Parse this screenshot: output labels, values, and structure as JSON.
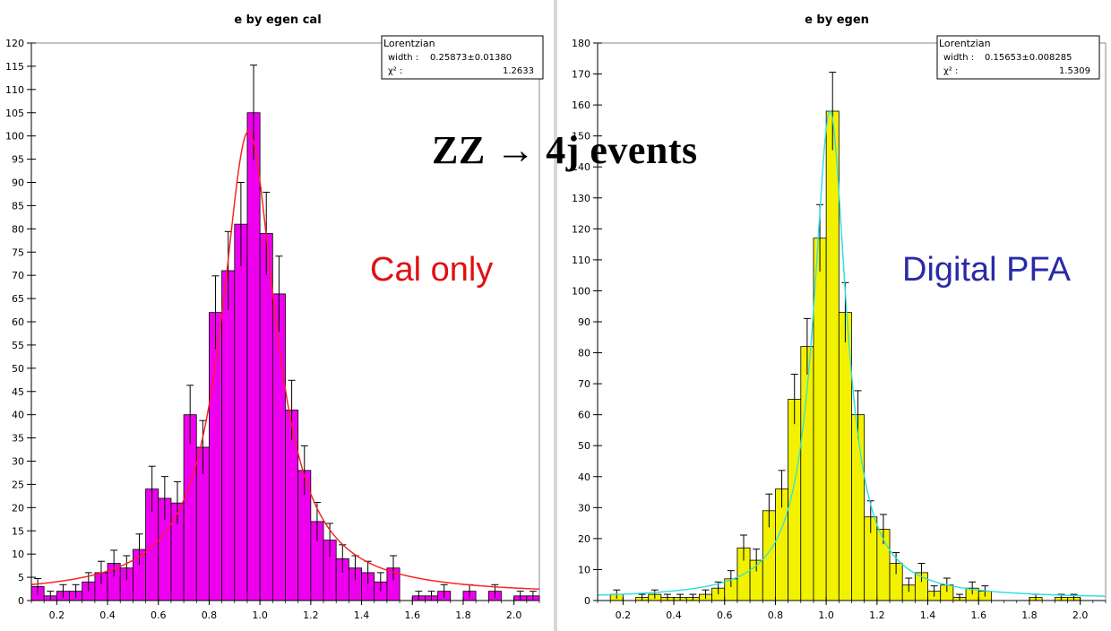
{
  "overlay": {
    "title": "ZZ → 4j events",
    "label_left": "Cal only",
    "label_right": "Digital PFA"
  },
  "colors": {
    "left_fill": "#ee00ee",
    "left_fit": "#ff2020",
    "right_fill": "#f2f200",
    "right_fit": "#30e0e0",
    "label_left": "#e01010",
    "label_right": "#2a2aa8"
  },
  "chart_data": [
    {
      "type": "bar",
      "title": "e by egen cal",
      "xlabel": "",
      "ylabel": "",
      "xlim": [
        0.1,
        2.1
      ],
      "ylim": [
        0,
        120
      ],
      "bin_width": 0.05,
      "yticks": [
        0,
        5,
        10,
        15,
        20,
        25,
        30,
        35,
        40,
        45,
        50,
        55,
        60,
        65,
        70,
        75,
        80,
        85,
        90,
        95,
        100,
        105,
        110,
        115,
        120
      ],
      "xticks": [
        0.2,
        0.4,
        0.6,
        0.8,
        1.0,
        1.2,
        1.4,
        1.6,
        1.8,
        2.0
      ],
      "xtick_labels": [
        "0.2",
        "0.4",
        "0.6",
        "0.8",
        "1.0",
        "1.2",
        "1.4",
        "1.6",
        "1.8",
        "2.0"
      ],
      "bin_centers": [
        0.125,
        0.175,
        0.225,
        0.275,
        0.325,
        0.375,
        0.425,
        0.475,
        0.525,
        0.575,
        0.625,
        0.675,
        0.725,
        0.775,
        0.825,
        0.875,
        0.925,
        0.975,
        1.025,
        1.075,
        1.125,
        1.175,
        1.225,
        1.275,
        1.325,
        1.375,
        1.425,
        1.475,
        1.525,
        1.625,
        1.675,
        1.725,
        1.825,
        1.925,
        2.025,
        2.075
      ],
      "values": [
        3,
        1,
        2,
        2,
        4,
        6,
        8,
        7,
        11,
        24,
        22,
        21,
        40,
        33,
        62,
        71,
        81,
        105,
        79,
        66,
        41,
        28,
        17,
        13,
        9,
        7,
        6,
        4,
        7,
        1,
        1,
        2,
        2,
        2,
        1,
        1
      ],
      "fit": {
        "name": "Lorentzian",
        "peak": 101,
        "center": 0.955,
        "width": 0.25873,
        "baseline": 1.2
      },
      "legend": {
        "title": "Lorentzian",
        "width_label": "width :",
        "width_value": "0.25873±0.01380",
        "chi_label": "χ² :",
        "chi_value": "1.2633"
      },
      "legend_position": "top-right"
    },
    {
      "type": "bar",
      "title": "e by egen",
      "xlabel": "",
      "ylabel": "",
      "xlim": [
        0.1,
        2.1
      ],
      "ylim": [
        0,
        180
      ],
      "bin_width": 0.05,
      "yticks": [
        0,
        10,
        20,
        30,
        40,
        50,
        60,
        70,
        80,
        90,
        100,
        110,
        120,
        130,
        140,
        150,
        160,
        170,
        180
      ],
      "xticks": [
        0.2,
        0.4,
        0.6,
        0.8,
        1.0,
        1.2,
        1.4,
        1.6,
        1.8,
        2.0
      ],
      "xtick_labels": [
        "0.2",
        "0.4",
        "0.6",
        "0.8",
        "1.0",
        "1.2",
        "1.4",
        "1.6",
        "1.8",
        "2.0"
      ],
      "bin_centers": [
        0.175,
        0.275,
        0.325,
        0.375,
        0.425,
        0.475,
        0.525,
        0.575,
        0.625,
        0.675,
        0.725,
        0.775,
        0.825,
        0.875,
        0.925,
        0.975,
        1.025,
        1.075,
        1.125,
        1.175,
        1.225,
        1.275,
        1.325,
        1.375,
        1.425,
        1.475,
        1.525,
        1.575,
        1.625,
        1.825,
        1.925,
        1.975
      ],
      "values": [
        2,
        1,
        2,
        1,
        1,
        1,
        2,
        4,
        7,
        17,
        13,
        29,
        36,
        65,
        82,
        117,
        158,
        93,
        60,
        27,
        23,
        12,
        5,
        9,
        3,
        5,
        1,
        4,
        3,
        1,
        1,
        1
      ],
      "fit": {
        "name": "Lorentzian",
        "peak": 158,
        "center": 1.015,
        "width": 0.15653,
        "baseline": 0.6
      },
      "legend": {
        "title": "Lorentzian",
        "width_label": "width :",
        "width_value": "0.15653±0.008285",
        "chi_label": "χ² :",
        "chi_value": "1.5309"
      },
      "legend_position": "top-right"
    }
  ]
}
